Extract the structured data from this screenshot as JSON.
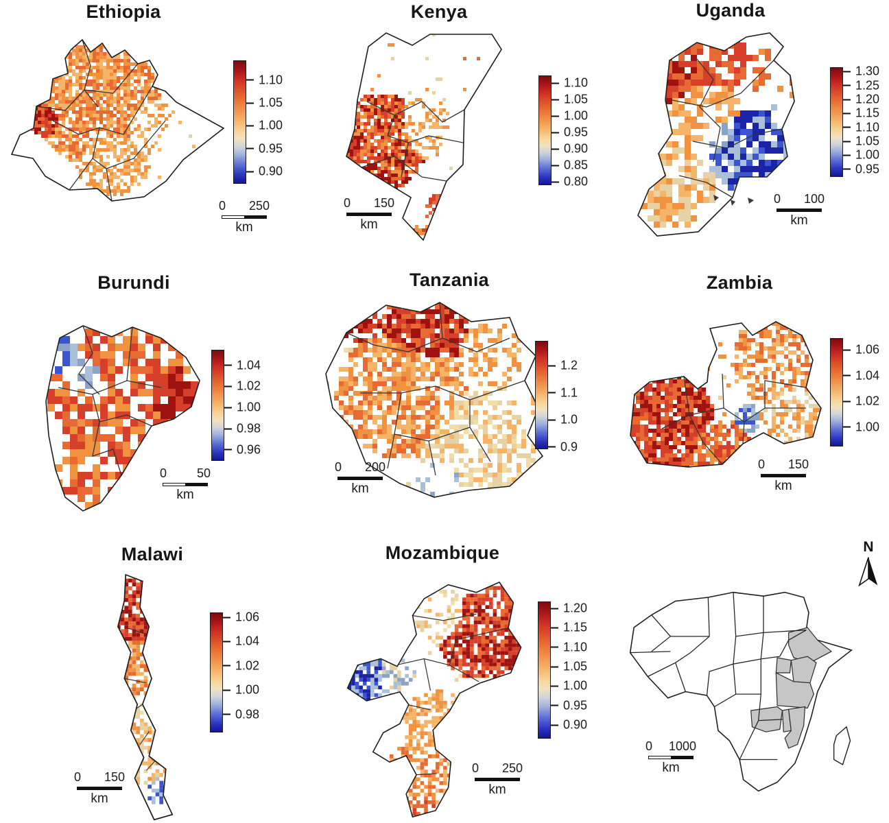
{
  "figure": {
    "background": "#ffffff",
    "text_color": "#1c1c1c",
    "outline_color": "#1c1c1c",
    "admin_border_color": "#333333",
    "colorbar_stops": [
      {
        "p": 0,
        "c": "#7a0c10"
      },
      {
        "p": 7,
        "c": "#a51418"
      },
      {
        "p": 16,
        "c": "#cf3124"
      },
      {
        "p": 28,
        "c": "#e4632e"
      },
      {
        "p": 40,
        "c": "#f0924a"
      },
      {
        "p": 50,
        "c": "#f6b96f"
      },
      {
        "p": 58,
        "c": "#f7d79c"
      },
      {
        "p": 64,
        "c": "#f0e2c0"
      },
      {
        "p": 70,
        "c": "#d3d5da"
      },
      {
        "p": 77,
        "c": "#9fb0dc"
      },
      {
        "p": 85,
        "c": "#5c6fd6"
      },
      {
        "p": 93,
        "c": "#2c36c0"
      },
      {
        "p": 100,
        "c": "#141694"
      }
    ],
    "palette": {
      "darkred": "#9e1310",
      "red": "#d6402a",
      "redorange": "#e86a33",
      "orange": "#f0923f",
      "lightorange": "#f5b468",
      "cream": "#f2dda6",
      "tan": "#e6d2a4",
      "paleblue": "#aabfd8",
      "grayblue": "#8ba3c9",
      "blue": "#3a55cd",
      "darkblue": "#1c24a6"
    },
    "overview_highlight": "#c6c6c6"
  },
  "panels": [
    {
      "id": "ethiopia",
      "title": "Ethiopia",
      "legend_ticks": [
        "1.10",
        "1.05",
        "1.00",
        "0.95",
        "0.90"
      ],
      "scale": {
        "start": "0",
        "end": "250",
        "unit": "km"
      }
    },
    {
      "id": "kenya",
      "title": "Kenya",
      "legend_ticks": [
        "1.10",
        "1.05",
        "1.00",
        "0.95",
        "0.90",
        "0.85",
        "0.80"
      ],
      "scale": {
        "start": "0",
        "end": "150",
        "unit": "km"
      }
    },
    {
      "id": "uganda",
      "title": "Uganda",
      "legend_ticks": [
        "1.30",
        "1.25",
        "1.20",
        "1.15",
        "1.10",
        "1.05",
        "1.00",
        "0.95"
      ],
      "scale": {
        "start": "0",
        "end": "100",
        "unit": "km"
      }
    },
    {
      "id": "burundi",
      "title": "Burundi",
      "legend_ticks": [
        "1.04",
        "1.02",
        "1.00",
        "0.98",
        "0.96"
      ],
      "scale": {
        "start": "0",
        "end": "50",
        "unit": "km"
      }
    },
    {
      "id": "tanzania",
      "title": "Tanzania",
      "legend_ticks": [
        "1.2",
        "1.1",
        "1.0",
        "0.9"
      ],
      "scale": {
        "start": "0",
        "end": "200",
        "unit": "km"
      }
    },
    {
      "id": "zambia",
      "title": "Zambia",
      "legend_ticks": [
        "1.06",
        "1.04",
        "1.02",
        "1.00"
      ],
      "scale": {
        "start": "0",
        "end": "150",
        "unit": "km"
      }
    },
    {
      "id": "malawi",
      "title": "Malawi",
      "legend_ticks": [
        "1.06",
        "1.04",
        "1.02",
        "1.00",
        "0.98"
      ],
      "scale": {
        "start": "0",
        "end": "150",
        "unit": "km"
      }
    },
    {
      "id": "mozambique",
      "title": "Mozambique",
      "legend_ticks": [
        "1.20",
        "1.15",
        "1.10",
        "1.05",
        "1.00",
        "0.95",
        "0.90"
      ],
      "scale": {
        "start": "0",
        "end": "250",
        "unit": "km"
      }
    }
  ],
  "overview": {
    "north_label": "N",
    "scale": {
      "start": "0",
      "end": "1000",
      "unit": "km"
    }
  }
}
